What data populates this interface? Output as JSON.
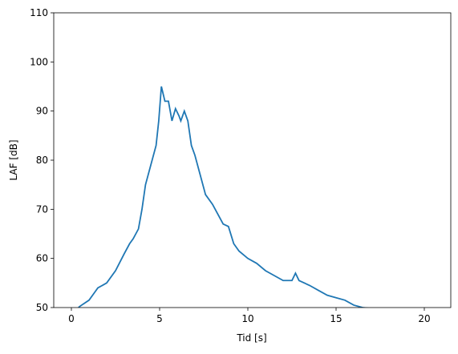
{
  "chart_data": {
    "type": "line",
    "xlabel": "Tid [s]",
    "ylabel": "LAF [dB]",
    "x": [
      0.4,
      0.5,
      1.0,
      1.3,
      1.5,
      2.0,
      2.5,
      3.0,
      3.3,
      3.5,
      3.8,
      4.0,
      4.2,
      4.5,
      4.8,
      4.95,
      5.1,
      5.3,
      5.5,
      5.7,
      5.9,
      6.1,
      6.2,
      6.4,
      6.6,
      6.8,
      7.0,
      7.3,
      7.6,
      8.0,
      8.3,
      8.6,
      8.9,
      9.2,
      9.5,
      10.0,
      10.5,
      11.0,
      11.5,
      12.0,
      12.5,
      12.7,
      12.9,
      13.5,
      14.0,
      14.5,
      15.0,
      15.5,
      16.0,
      16.5,
      17.0
    ],
    "values": [
      50,
      50.3,
      51.5,
      53,
      54,
      55,
      57.5,
      61,
      63,
      64,
      66,
      70,
      75,
      79,
      83,
      88,
      95,
      92,
      92,
      88,
      90.5,
      89,
      88,
      90,
      88,
      83,
      81,
      77,
      73,
      71,
      69,
      67,
      66.5,
      63,
      61.5,
      60,
      59,
      57.5,
      56.5,
      55.5,
      55.5,
      57,
      55.5,
      54.5,
      53.5,
      52.5,
      52,
      51.5,
      50.5,
      50,
      49.8
    ],
    "color": "#1f77b4",
    "xlim": [
      -1,
      21.5
    ],
    "xticks": [
      0,
      5,
      10,
      15,
      20
    ],
    "ylim": [
      50,
      110
    ],
    "yticks": [
      50,
      60,
      70,
      80,
      90,
      100,
      110
    ]
  }
}
